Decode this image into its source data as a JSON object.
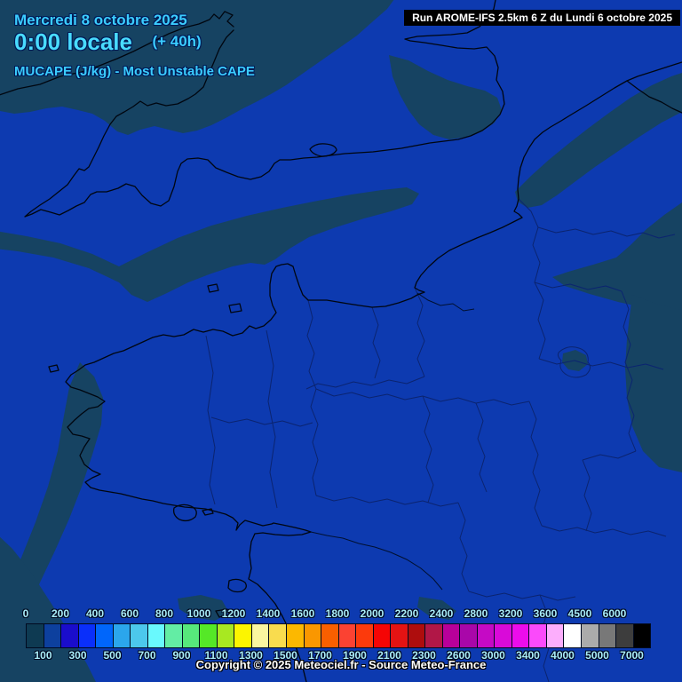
{
  "header": {
    "date_line": "Mercredi 8 octobre 2025",
    "time_line": "0:00 locale",
    "time_offset": "(+ 40h)",
    "param_line": "MUCAPE (J/kg) - Most Unstable CAPE",
    "run_line": "Run AROME-IFS 2.5km 6 Z du Lundi 6 octobre 2025"
  },
  "footer": {
    "copyright": "Copyright © 2025 Meteociel.fr - Source Meteo-France"
  },
  "map": {
    "base_color": "#0d3ab0",
    "low_cape_patch_color": "#164362",
    "coast_color": "#000610",
    "department_border_color": "#0b2470",
    "visible_value_bins": [
      "0-100",
      "100-200"
    ]
  },
  "chart_data": {
    "type": "heatmap",
    "title": "MUCAPE (J/kg) - Most Unstable CAPE",
    "units": "J/kg",
    "legend_position": "bottom",
    "colorbar": {
      "thresholds": [
        0,
        100,
        200,
        300,
        400,
        500,
        600,
        700,
        800,
        900,
        1000,
        1100,
        1200,
        1300,
        1400,
        1500,
        1600,
        1700,
        1800,
        1900,
        2000,
        2100,
        2200,
        2300,
        2400,
        2600,
        2800,
        3000,
        3200,
        3400,
        3600,
        4000,
        4500,
        5000,
        6000,
        7000
      ],
      "top_labels": [
        "0",
        "200",
        "400",
        "600",
        "800",
        "1000",
        "1200",
        "1400",
        "1600",
        "1800",
        "2000",
        "2200",
        "2400",
        "2800",
        "3200",
        "3600",
        "4500",
        "6000"
      ],
      "bottom_labels": [
        "100",
        "300",
        "500",
        "700",
        "900",
        "1100",
        "1300",
        "1500",
        "1700",
        "1900",
        "2100",
        "2300",
        "2600",
        "3000",
        "3400",
        "4000",
        "5000",
        "7000"
      ],
      "cell_colors": [
        "#0e3a52",
        "#0d409e",
        "#1a0dcc",
        "#0a2ffa",
        "#0066fb",
        "#2ba6ec",
        "#4cc8ec",
        "#69f9fd",
        "#63eda4",
        "#57e87b",
        "#55e827",
        "#a8e821",
        "#fcf500",
        "#faf6a0",
        "#f9dc4e",
        "#fcb800",
        "#fa9700",
        "#f95f00",
        "#fb4232",
        "#fc3a0c",
        "#f50505",
        "#e51313",
        "#ae0d0d",
        "#b11747",
        "#b8009a",
        "#a907a9",
        "#c50ac5",
        "#d90ad9",
        "#ec0cec",
        "#fb4afb",
        "#fcaefc",
        "#ffffff",
        "#ababab",
        "#787878",
        "#3d3d3d",
        "#000000"
      ]
    }
  }
}
